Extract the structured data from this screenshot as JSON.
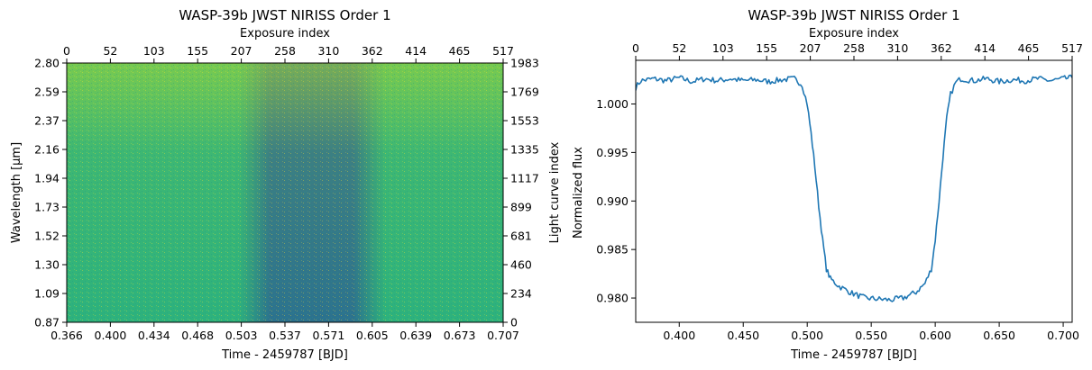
{
  "chart_data": [
    {
      "type": "heatmap",
      "title": "WASP-39b JWST NIRISS Order 1",
      "xlabel": "Time - 2459787 [BJD]",
      "ylabel": "Wavelength [μm]",
      "x2label": "Exposure index",
      "y2label": "Light curve index",
      "xlim": [
        0.366,
        0.707
      ],
      "ylim": [
        0.87,
        2.8
      ],
      "x2lim": [
        0,
        517
      ],
      "y2lim": [
        0,
        1983
      ],
      "xticks": [
        "0.366",
        "0.400",
        "0.434",
        "0.468",
        "0.503",
        "0.537",
        "0.571",
        "0.605",
        "0.639",
        "0.673",
        "0.707"
      ],
      "yticks": [
        "0.87",
        "1.09",
        "1.30",
        "1.52",
        "1.73",
        "1.94",
        "2.16",
        "2.37",
        "2.59",
        "2.80"
      ],
      "x2ticks": [
        "0",
        "52",
        "103",
        "155",
        "207",
        "258",
        "310",
        "362",
        "414",
        "465",
        "517"
      ],
      "y2ticks": [
        "0",
        "234",
        "460",
        "681",
        "899",
        "1117",
        "1335",
        "1553",
        "1769",
        "1983"
      ],
      "transit": {
        "ingress_start": 0.5,
        "ingress_end": 0.525,
        "egress_start": 0.59,
        "egress_end": 0.615
      },
      "colors": {
        "out_of_transit": "#2db27d",
        "in_transit": "#2c728e",
        "high_noise": "#b5de2b"
      }
    },
    {
      "type": "line",
      "title": "WASP-39b JWST NIRISS Order 1",
      "xlabel": "Time - 2459787 [BJD]",
      "ylabel": "Normalized flux",
      "x2label": "Exposure index",
      "xlim": [
        0.366,
        0.707
      ],
      "ylim": [
        0.9775,
        1.0045
      ],
      "x2lim": [
        0,
        517
      ],
      "xticks": [
        "0.400",
        "0.450",
        "0.500",
        "0.550",
        "0.600",
        "0.650",
        "0.700"
      ],
      "yticks": [
        "0.980",
        "0.985",
        "0.990",
        "0.995",
        "1.000"
      ],
      "x2ticks": [
        "0",
        "52",
        "103",
        "155",
        "207",
        "258",
        "310",
        "362",
        "414",
        "465",
        "517"
      ],
      "color": "#1f77b4",
      "points": [
        [
          0.366,
          1.0017
        ],
        [
          0.37,
          1.0024
        ],
        [
          0.38,
          1.0026
        ],
        [
          0.39,
          1.0024
        ],
        [
          0.4,
          1.0027
        ],
        [
          0.41,
          1.0023
        ],
        [
          0.42,
          1.0026
        ],
        [
          0.43,
          1.0024
        ],
        [
          0.44,
          1.0026
        ],
        [
          0.45,
          1.0024
        ],
        [
          0.46,
          1.0025
        ],
        [
          0.47,
          1.0023
        ],
        [
          0.48,
          1.0025
        ],
        [
          0.49,
          1.0026
        ],
        [
          0.496,
          1.002
        ],
        [
          0.5,
          1.0
        ],
        [
          0.503,
          0.997
        ],
        [
          0.506,
          0.9935
        ],
        [
          0.509,
          0.9895
        ],
        [
          0.512,
          0.986
        ],
        [
          0.515,
          0.983
        ],
        [
          0.518,
          0.982
        ],
        [
          0.525,
          0.9812
        ],
        [
          0.535,
          0.9805
        ],
        [
          0.545,
          0.98
        ],
        [
          0.555,
          0.9799
        ],
        [
          0.565,
          0.9798
        ],
        [
          0.575,
          0.98
        ],
        [
          0.585,
          0.9806
        ],
        [
          0.592,
          0.9815
        ],
        [
          0.597,
          0.983
        ],
        [
          0.6,
          0.986
        ],
        [
          0.603,
          0.99
        ],
        [
          0.606,
          0.9945
        ],
        [
          0.609,
          0.9985
        ],
        [
          0.612,
          1.001
        ],
        [
          0.616,
          1.0022
        ],
        [
          0.62,
          1.0026
        ],
        [
          0.63,
          1.0024
        ],
        [
          0.64,
          1.0026
        ],
        [
          0.65,
          1.0023
        ],
        [
          0.66,
          1.0025
        ],
        [
          0.67,
          1.0024
        ],
        [
          0.68,
          1.0026
        ],
        [
          0.69,
          1.0024
        ],
        [
          0.7,
          1.0026
        ],
        [
          0.707,
          1.0027
        ]
      ]
    }
  ]
}
